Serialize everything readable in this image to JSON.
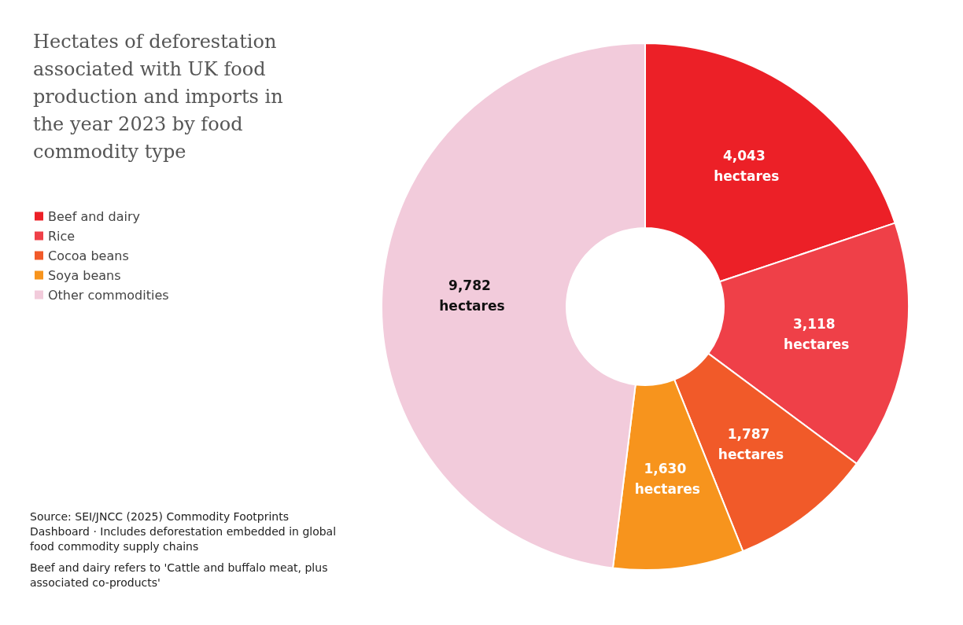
{
  "chart_data": {
    "type": "donut",
    "title": "Hectates of deforestation associated with UK food production and imports in the year 2023 by food commodity type",
    "categories": [
      "Beef and dairy",
      "Rice",
      "Cocoa beans",
      "Soya beans",
      "Other commodities"
    ],
    "values": [
      4043,
      3118,
      1787,
      1630,
      9782
    ],
    "colors": [
      "#ec2027",
      "#ef4048",
      "#f15a29",
      "#f7941d",
      "#f2cbdb"
    ],
    "value_labels": [
      "4,043 hectares",
      "3,118 hectares",
      "1,787 hectares",
      "1,630 hectares",
      "9,782 hectares"
    ],
    "legend": "left",
    "annotations": [
      "Source: SEI/JNCC (2025) Commodity Footprints Dashboard · Includes deforestation embedded in global food commodity supply chains",
      "Beef and dairy refers to 'Cattle and buffalo meat, plus associated co-products'"
    ]
  }
}
